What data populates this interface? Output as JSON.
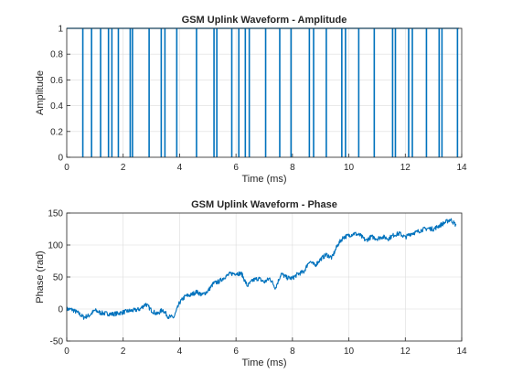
{
  "chart_data": [
    {
      "type": "line",
      "title": "GSM Uplink Waveform - Amplitude",
      "xlabel": "Time (ms)",
      "ylabel": "Amplitude",
      "xlim": [
        0,
        14
      ],
      "ylim": [
        0,
        1
      ],
      "xticks": [
        "0",
        "2",
        "4",
        "6",
        "8",
        "10",
        "12",
        "14"
      ],
      "yticks": [
        "0",
        "0.2",
        "0.4",
        "0.6",
        "0.8",
        "1"
      ],
      "grid": true,
      "color": "#0072BD",
      "baseline": 1,
      "dips": [
        {
          "x": 0.57,
          "depth": 0.0
        },
        {
          "x": 0.88,
          "depth": 0.0
        },
        {
          "x": 1.2,
          "depth": 0.0
        },
        {
          "x": 1.48,
          "depth": 0.0
        },
        {
          "x": 1.6,
          "depth": 0.0
        },
        {
          "x": 1.83,
          "depth": 0.0
        },
        {
          "x": 2.25,
          "depth": 0.0
        },
        {
          "x": 2.33,
          "depth": 0.0
        },
        {
          "x": 2.92,
          "depth": 0.0
        },
        {
          "x": 3.35,
          "depth": 0.0
        },
        {
          "x": 3.48,
          "depth": 0.0
        },
        {
          "x": 3.9,
          "depth": 0.0
        },
        {
          "x": 4.6,
          "depth": 0.0
        },
        {
          "x": 5.22,
          "depth": 0.0
        },
        {
          "x": 5.32,
          "depth": 0.0
        },
        {
          "x": 5.85,
          "depth": 0.0
        },
        {
          "x": 6.1,
          "depth": 0.0
        },
        {
          "x": 6.33,
          "depth": 0.0
        },
        {
          "x": 6.47,
          "depth": 0.0
        },
        {
          "x": 7.05,
          "depth": 0.0
        },
        {
          "x": 7.55,
          "depth": 0.0
        },
        {
          "x": 7.95,
          "depth": 0.0
        },
        {
          "x": 8.6,
          "depth": 0.0
        },
        {
          "x": 8.75,
          "depth": 0.0
        },
        {
          "x": 9.2,
          "depth": 0.0
        },
        {
          "x": 9.75,
          "depth": 0.0
        },
        {
          "x": 9.88,
          "depth": 0.0
        },
        {
          "x": 10.35,
          "depth": 0.0
        },
        {
          "x": 10.9,
          "depth": 0.0
        },
        {
          "x": 11.55,
          "depth": 0.0
        },
        {
          "x": 11.65,
          "depth": 0.0
        },
        {
          "x": 12.12,
          "depth": 0.0
        },
        {
          "x": 12.25,
          "depth": 0.0
        },
        {
          "x": 12.75,
          "depth": 0.0
        },
        {
          "x": 13.2,
          "depth": 0.0
        },
        {
          "x": 13.3,
          "depth": 0.0
        },
        {
          "x": 13.85,
          "depth": 0.0
        }
      ]
    },
    {
      "type": "line",
      "title": "GSM Uplink Waveform - Phase",
      "xlabel": "Time (ms)",
      "ylabel": "Phase (rad)",
      "xlim": [
        0,
        14
      ],
      "ylim": [
        -50,
        150
      ],
      "xticks": [
        "0",
        "2",
        "4",
        "6",
        "8",
        "10",
        "12",
        "14"
      ],
      "yticks": [
        "-50",
        "0",
        "50",
        "100",
        "150"
      ],
      "grid": true,
      "color": "#0072BD",
      "x": [
        0,
        0.2,
        0.4,
        0.6,
        0.8,
        1.0,
        1.2,
        1.4,
        1.6,
        1.8,
        2.0,
        2.2,
        2.4,
        2.6,
        2.8,
        3.0,
        3.2,
        3.4,
        3.6,
        3.8,
        4.0,
        4.2,
        4.4,
        4.6,
        4.8,
        5.0,
        5.2,
        5.4,
        5.6,
        5.8,
        6.0,
        6.2,
        6.4,
        6.6,
        6.8,
        7.0,
        7.2,
        7.4,
        7.6,
        7.8,
        8.0,
        8.2,
        8.4,
        8.6,
        8.8,
        9.0,
        9.2,
        9.4,
        9.6,
        9.8,
        10.0,
        10.2,
        10.4,
        10.6,
        10.8,
        11.0,
        11.2,
        11.4,
        11.6,
        11.8,
        12.0,
        12.2,
        12.4,
        12.6,
        12.8,
        13.0,
        13.2,
        13.4,
        13.6,
        13.8
      ],
      "y": [
        0,
        -1,
        -6,
        -13,
        -10,
        -2,
        -6,
        -7,
        -8,
        -7,
        -5,
        -3,
        -2,
        0,
        8,
        -2,
        -8,
        -1,
        -12,
        -13,
        10,
        20,
        22,
        27,
        22,
        28,
        40,
        43,
        50,
        55,
        56,
        55,
        36,
        45,
        48,
        42,
        48,
        33,
        55,
        49,
        48,
        55,
        58,
        75,
        68,
        78,
        85,
        80,
        100,
        112,
        115,
        118,
        115,
        107,
        113,
        110,
        113,
        110,
        116,
        118,
        112,
        118,
        120,
        124,
        126,
        125,
        130,
        135,
        140,
        131
      ]
    }
  ]
}
